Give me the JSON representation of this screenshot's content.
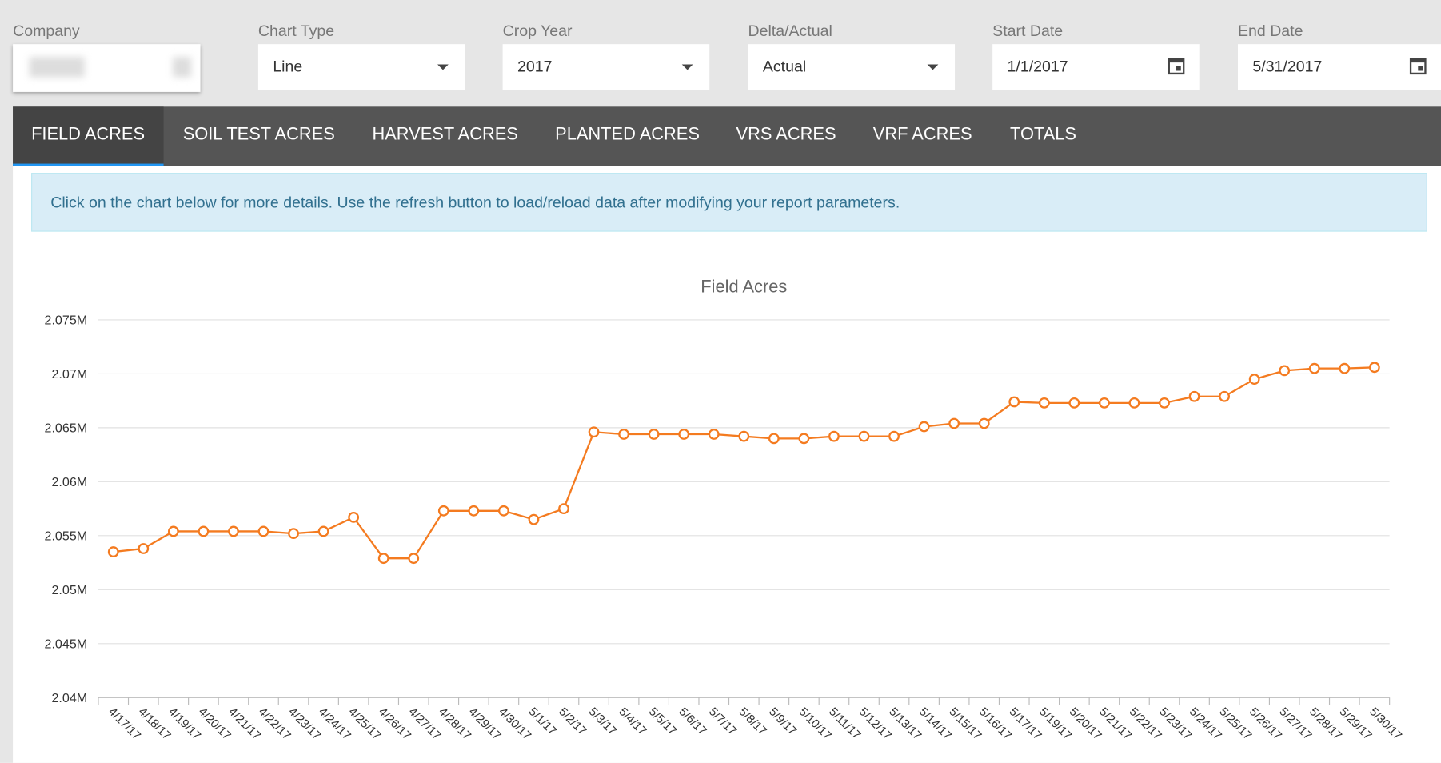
{
  "filters": [
    {
      "label": "Company"
    },
    {
      "label": "Chart Type",
      "value": "Line"
    },
    {
      "label": "Crop Year",
      "value": "2017"
    },
    {
      "label": "Delta/Actual",
      "value": "Actual"
    },
    {
      "label": "Start Date",
      "value": "1/1/2017"
    },
    {
      "label": "End Date",
      "value": "5/31/2017"
    }
  ],
  "tabs": [
    "FIELD ACRES",
    "SOIL TEST ACRES",
    "HARVEST ACRES",
    "PLANTED ACRES",
    "VRS ACRES",
    "VRF ACRES",
    "TOTALS"
  ],
  "info": "Click on the chart below for more details. Use the refresh button to load/reload data after modifying your report parameters.",
  "chart_data": {
    "type": "line",
    "title": "Field Acres",
    "color": "#f47b20",
    "categories": [
      "4/17/17",
      "4/18/17",
      "4/19/17",
      "4/20/17",
      "4/21/17",
      "4/22/17",
      "4/23/17",
      "4/24/17",
      "4/25/17",
      "4/26/17",
      "4/27/17",
      "4/28/17",
      "4/29/17",
      "4/30/17",
      "5/1/17",
      "5/2/17",
      "5/3/17",
      "5/4/17",
      "5/5/17",
      "5/6/17",
      "5/7/17",
      "5/8/17",
      "5/9/17",
      "5/10/17",
      "5/11/17",
      "5/12/17",
      "5/13/17",
      "5/14/17",
      "5/15/17",
      "5/16/17",
      "5/17/17",
      "5/19/17",
      "5/20/17",
      "5/21/17",
      "5/22/17",
      "5/23/17",
      "5/24/17",
      "5/25/17",
      "5/26/17",
      "5/27/17",
      "5/28/17",
      "5/29/17",
      "5/30/17"
    ],
    "values": [
      2053500,
      2053800,
      2055400,
      2055400,
      2055400,
      2055400,
      2055200,
      2055400,
      2056700,
      2052900,
      2052900,
      2057300,
      2057300,
      2057300,
      2056500,
      2057500,
      2064600,
      2064400,
      2064400,
      2064400,
      2064400,
      2064200,
      2064000,
      2064000,
      2064200,
      2064200,
      2064200,
      2065100,
      2065400,
      2065400,
      2067400,
      2067300,
      2067300,
      2067300,
      2067300,
      2067300,
      2067900,
      2067900,
      2069500,
      2070300,
      2070500,
      2070500,
      2070600
    ],
    "ylim": [
      2040000,
      2075000
    ],
    "yticks": [
      {
        "value": 2040000,
        "label": "2.04M"
      },
      {
        "value": 2045000,
        "label": "2.045M"
      },
      {
        "value": 2050000,
        "label": "2.05M"
      },
      {
        "value": 2055000,
        "label": "2.055M"
      },
      {
        "value": 2060000,
        "label": "2.06M"
      },
      {
        "value": 2065000,
        "label": "2.065M"
      },
      {
        "value": 2070000,
        "label": "2.07M"
      },
      {
        "value": 2075000,
        "label": "2.075M"
      }
    ],
    "grid": true
  }
}
